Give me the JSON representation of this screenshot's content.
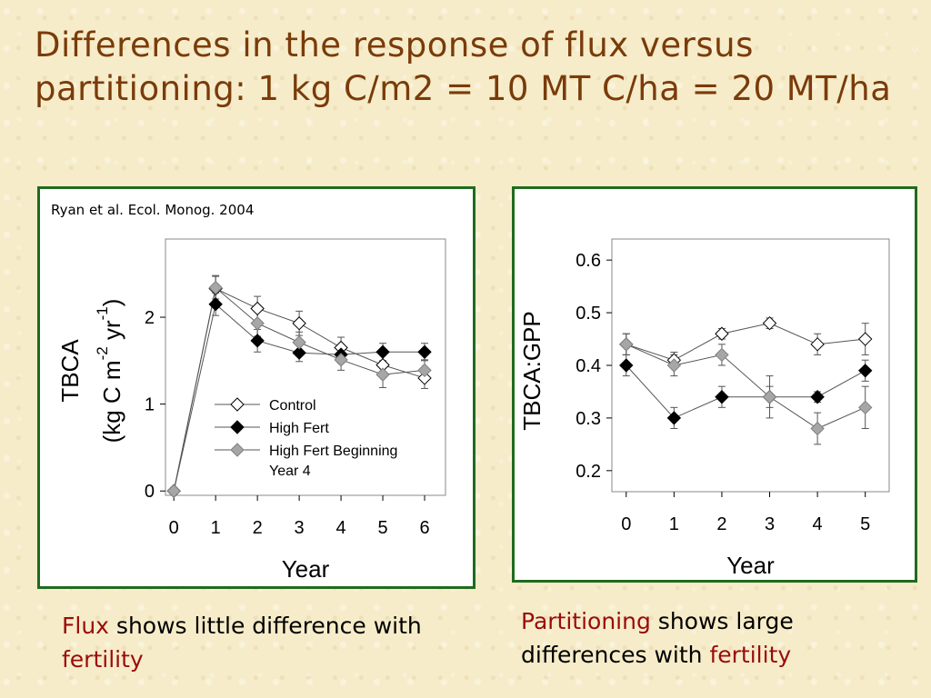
{
  "slide": {
    "title": "Differences in the response of flux versus partitioning: 1 kg C/m2 = 10 MT C/ha = 20 MT/ha"
  },
  "citation": "Ryan et al. Ecol. Monog. 2004",
  "captions": {
    "left": {
      "highlight": "Flux",
      "text1": " shows little difference with ",
      "highlight2": "fertility"
    },
    "right": {
      "highlight": "Partitioning",
      "text1": " shows large differences with ",
      "highlight2": "fertility"
    }
  },
  "colors": {
    "title": "#7a3b0a",
    "highlight": "#9a0b0b",
    "panel_border": "#1f6b1f",
    "control_fill": "#ffffff",
    "high_fert_fill": "#000000",
    "high_fert_beginning_fill": "#a6a6a6"
  },
  "chart_data": [
    {
      "type": "line",
      "title": "",
      "xlabel": "Year",
      "ylabel_main": "TBCA",
      "ylabel_units": {
        "prefix": "(kg C m",
        "exp1": "-2",
        "mid": " yr",
        "exp2": "-1",
        "suffix": ")"
      },
      "xlim": [
        -0.2,
        6.5
      ],
      "ylim": [
        -0.05,
        2.9
      ],
      "x_ticks": [
        0,
        1,
        2,
        3,
        4,
        5,
        6
      ],
      "y_ticks": [
        0,
        1,
        2
      ],
      "legend_position": "lower-center",
      "series": [
        {
          "name": "Control",
          "marker": "diamond-open",
          "x": [
            0,
            1,
            2,
            3,
            4,
            5,
            6
          ],
          "y": [
            0,
            2.33,
            2.1,
            1.93,
            1.65,
            1.45,
            1.3
          ],
          "err": [
            0,
            0.15,
            0.14,
            0.14,
            0.12,
            0.12,
            0.12
          ]
        },
        {
          "name": "High Fert",
          "marker": "diamond-filled",
          "x": [
            0,
            1,
            2,
            3,
            4,
            5,
            6
          ],
          "y": [
            0,
            2.15,
            1.73,
            1.59,
            1.57,
            1.6,
            1.6
          ],
          "err": [
            0,
            0.13,
            0.13,
            0.1,
            0.1,
            0.1,
            0.1
          ]
        },
        {
          "name": "High Fert Beginning Year 4",
          "marker": "diamond-grey",
          "x": [
            0,
            1,
            2,
            3,
            4,
            5,
            6
          ],
          "y": [
            0,
            2.34,
            1.93,
            1.71,
            1.51,
            1.34,
            1.39
          ],
          "err": [
            0,
            0.13,
            0.15,
            0.12,
            0.12,
            0.15,
            0.12
          ]
        }
      ]
    },
    {
      "type": "line",
      "title": "",
      "xlabel": "Year",
      "ylabel": "TBCA:GPP",
      "xlim": [
        -0.3,
        5.5
      ],
      "ylim": [
        0.16,
        0.64
      ],
      "x_ticks": [
        0,
        1,
        2,
        3,
        4,
        5
      ],
      "y_ticks": [
        0.2,
        0.3,
        0.4,
        0.5,
        0.6
      ],
      "series": [
        {
          "name": "Control",
          "marker": "diamond-open",
          "x": [
            0,
            1,
            2,
            3,
            4,
            5
          ],
          "y": [
            0.44,
            0.41,
            0.46,
            0.48,
            0.44,
            0.45
          ],
          "err": [
            0.02,
            0.015,
            0.01,
            0.01,
            0.02,
            0.03
          ]
        },
        {
          "name": "High Fert",
          "marker": "diamond-filled",
          "x": [
            0,
            1,
            2,
            3,
            4,
            5
          ],
          "y": [
            0.4,
            0.3,
            0.34,
            0.34,
            0.34,
            0.39
          ],
          "err": [
            0.02,
            0.02,
            0.02,
            0.02,
            0.01,
            0.02
          ]
        },
        {
          "name": "High Fert Beginning Year 4",
          "marker": "diamond-grey",
          "x": [
            0,
            1,
            2,
            3,
            4,
            5
          ],
          "y": [
            0.44,
            0.4,
            0.42,
            0.34,
            0.28,
            0.32
          ],
          "err": [
            0.02,
            0.02,
            0.02,
            0.04,
            0.03,
            0.04
          ]
        }
      ]
    }
  ]
}
